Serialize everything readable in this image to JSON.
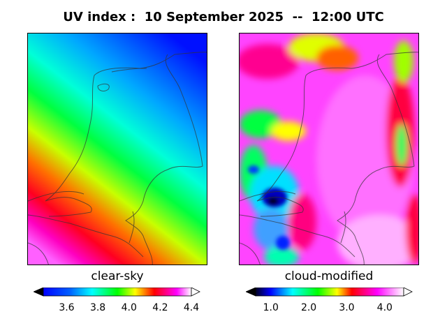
{
  "title": "UV index :  10 September 2025  --  12:00 UTC",
  "panels": [
    {
      "label": "clear-sky",
      "colorbar": {
        "min": 3.45,
        "max": 4.4,
        "ticks": [
          "3.6",
          "3.8",
          "4.0",
          "4.2",
          "4.4"
        ],
        "tick_values": [
          3.6,
          3.8,
          4.0,
          4.2,
          4.4
        ]
      }
    },
    {
      "label": "cloud-modified",
      "colorbar": {
        "min": 0.6,
        "max": 4.5,
        "ticks": [
          "1.0",
          "2.0",
          "3.0",
          "4.0"
        ],
        "tick_values": [
          1.0,
          2.0,
          3.0,
          4.0
        ]
      }
    }
  ],
  "colors": {
    "scale": [
      "#000000",
      "#0000ff",
      "#00ffff",
      "#00ff00",
      "#ffff00",
      "#ff0000",
      "#ff00ff",
      "#ffffff"
    ]
  }
}
